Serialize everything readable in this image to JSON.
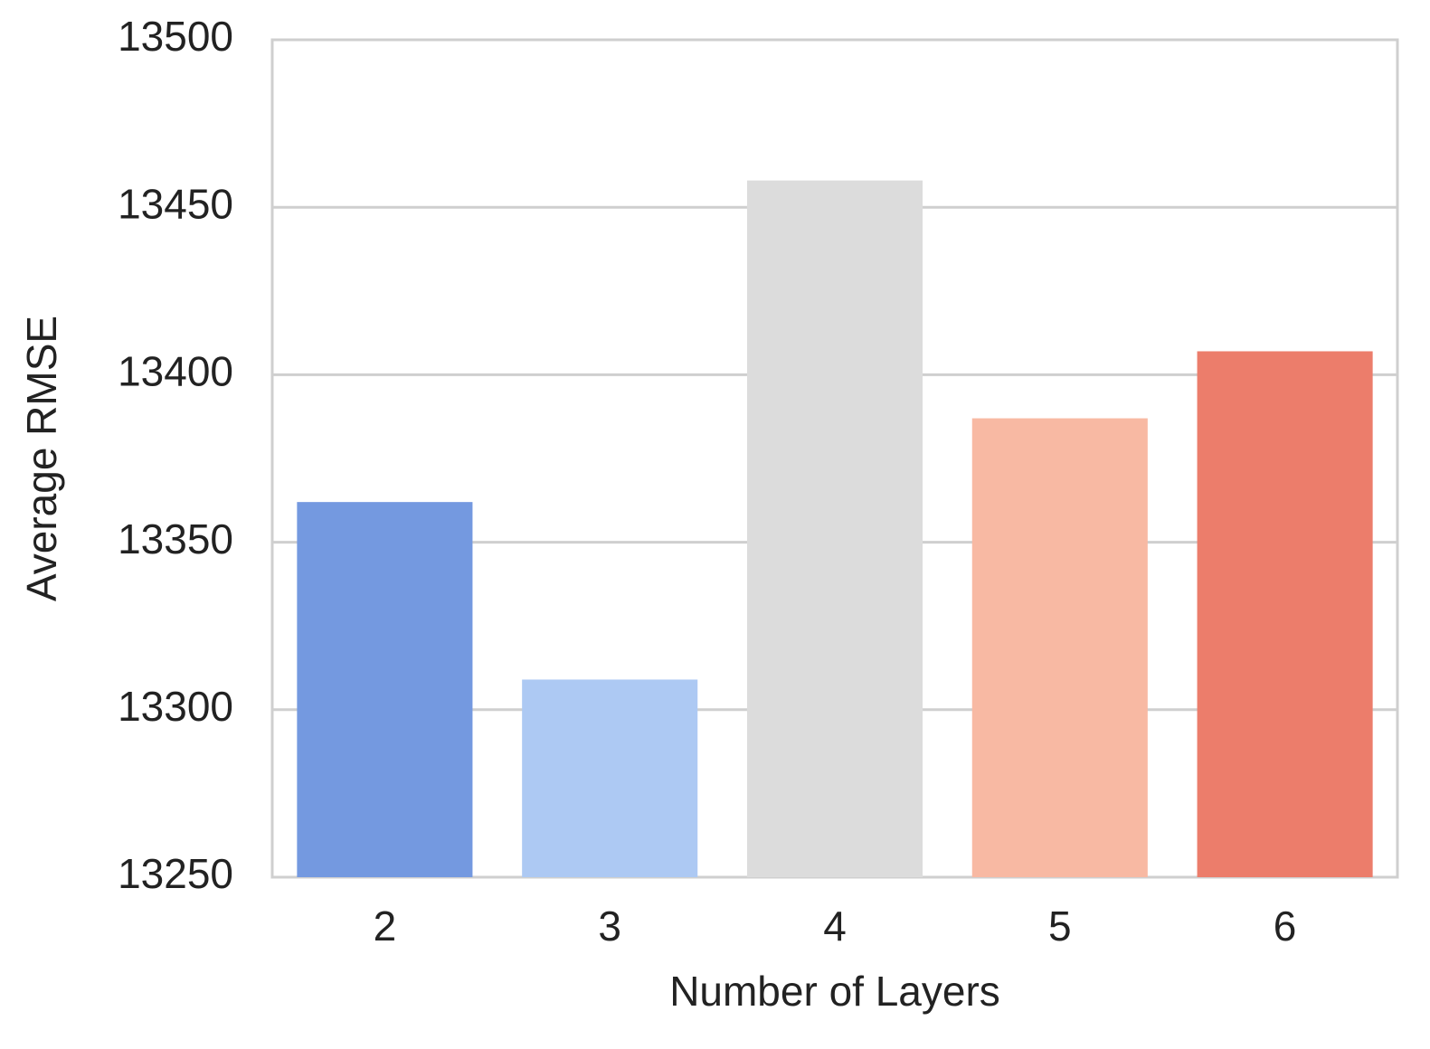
{
  "chart_data": {
    "type": "bar",
    "x_label": "Number of Layers",
    "y_label": "Average RMSE",
    "categories": [
      "2",
      "3",
      "4",
      "5",
      "6"
    ],
    "values": [
      13362,
      13309,
      13458,
      13387,
      13407
    ],
    "colors": [
      "#7499e0",
      "#adc9f3",
      "#dcdcdc",
      "#f8b9a3",
      "#ec7d6b"
    ],
    "ylim": [
      13250,
      13500
    ],
    "yticks": [
      13250,
      13300,
      13350,
      13400,
      13450,
      13500
    ],
    "grid": true
  }
}
